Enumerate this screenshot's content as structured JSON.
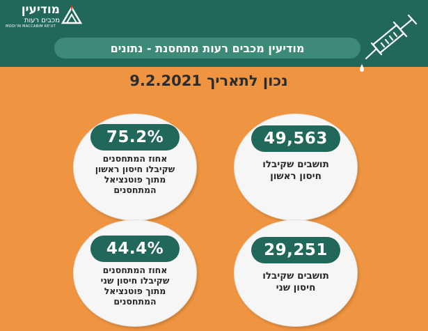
{
  "brand": {
    "name": "מודיעין",
    "subtitle": "מכבים רעות",
    "english": "MODI'IN MACCABIM RE'UT"
  },
  "header": {
    "title": "מודיעין מכבים רעות מתחסנת - נתונים"
  },
  "date_line": "נכון לתאריך 9.2.2021",
  "stats": {
    "first_dose_percent": {
      "value": "75.2%",
      "lines": [
        "אחוז המתחסנים",
        "שקיבלו חיסון ראשון",
        "מתוך פוטנציאל",
        "המתחסנים"
      ]
    },
    "first_dose_count": {
      "value": "49,563",
      "lines": [
        "תושבים שקיבלו",
        "חיסון ראשון"
      ]
    },
    "second_dose_percent": {
      "value": "44.4%",
      "lines": [
        "אחוז המתחסנים",
        "שקיבלו חיסון שני",
        "מתוך פוטנציאל",
        "המתחסנים"
      ]
    },
    "second_dose_count": {
      "value": "29,251",
      "lines": [
        "תושבים שקיבלו",
        "חיסון שני"
      ]
    }
  },
  "icons": {
    "logo": "city-emblem-icon",
    "syringe": "syringe-icon"
  },
  "colors": {
    "background": "#ef9440",
    "header": "#22685a",
    "title_bar": "#3d8a78",
    "pill": "#22685a",
    "circle": "#f6f6f6"
  }
}
